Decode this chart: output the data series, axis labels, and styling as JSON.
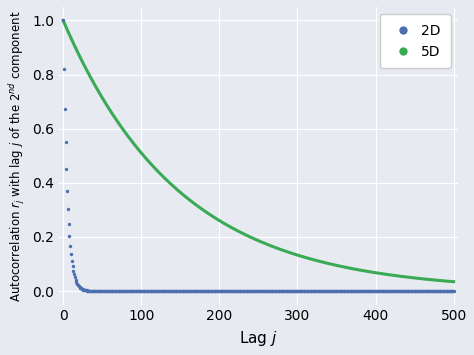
{
  "title": "",
  "xlabel": "Lag $j$",
  "ylabel": "Autocorrelation $r_j$ with lag $j$ of the 2$^{nd}$ component",
  "xlim": [
    -5,
    505
  ],
  "ylim": [
    -0.05,
    1.05
  ],
  "xticks": [
    0,
    100,
    200,
    300,
    400,
    500
  ],
  "yticks": [
    0.0,
    0.2,
    0.4,
    0.6,
    0.8,
    1.0
  ],
  "bg_color": "#e8eaf2",
  "grid_color": "white",
  "series_2D": {
    "label": "2D",
    "color": "#4c6faf",
    "rho": 0.82,
    "n_points": 500
  },
  "series_5D": {
    "label": "5D",
    "color": "#3aaa55",
    "rho": 0.9933,
    "n_points": 500
  },
  "legend_loc": "upper right",
  "marker_size": 6,
  "linewidth": 2.2
}
